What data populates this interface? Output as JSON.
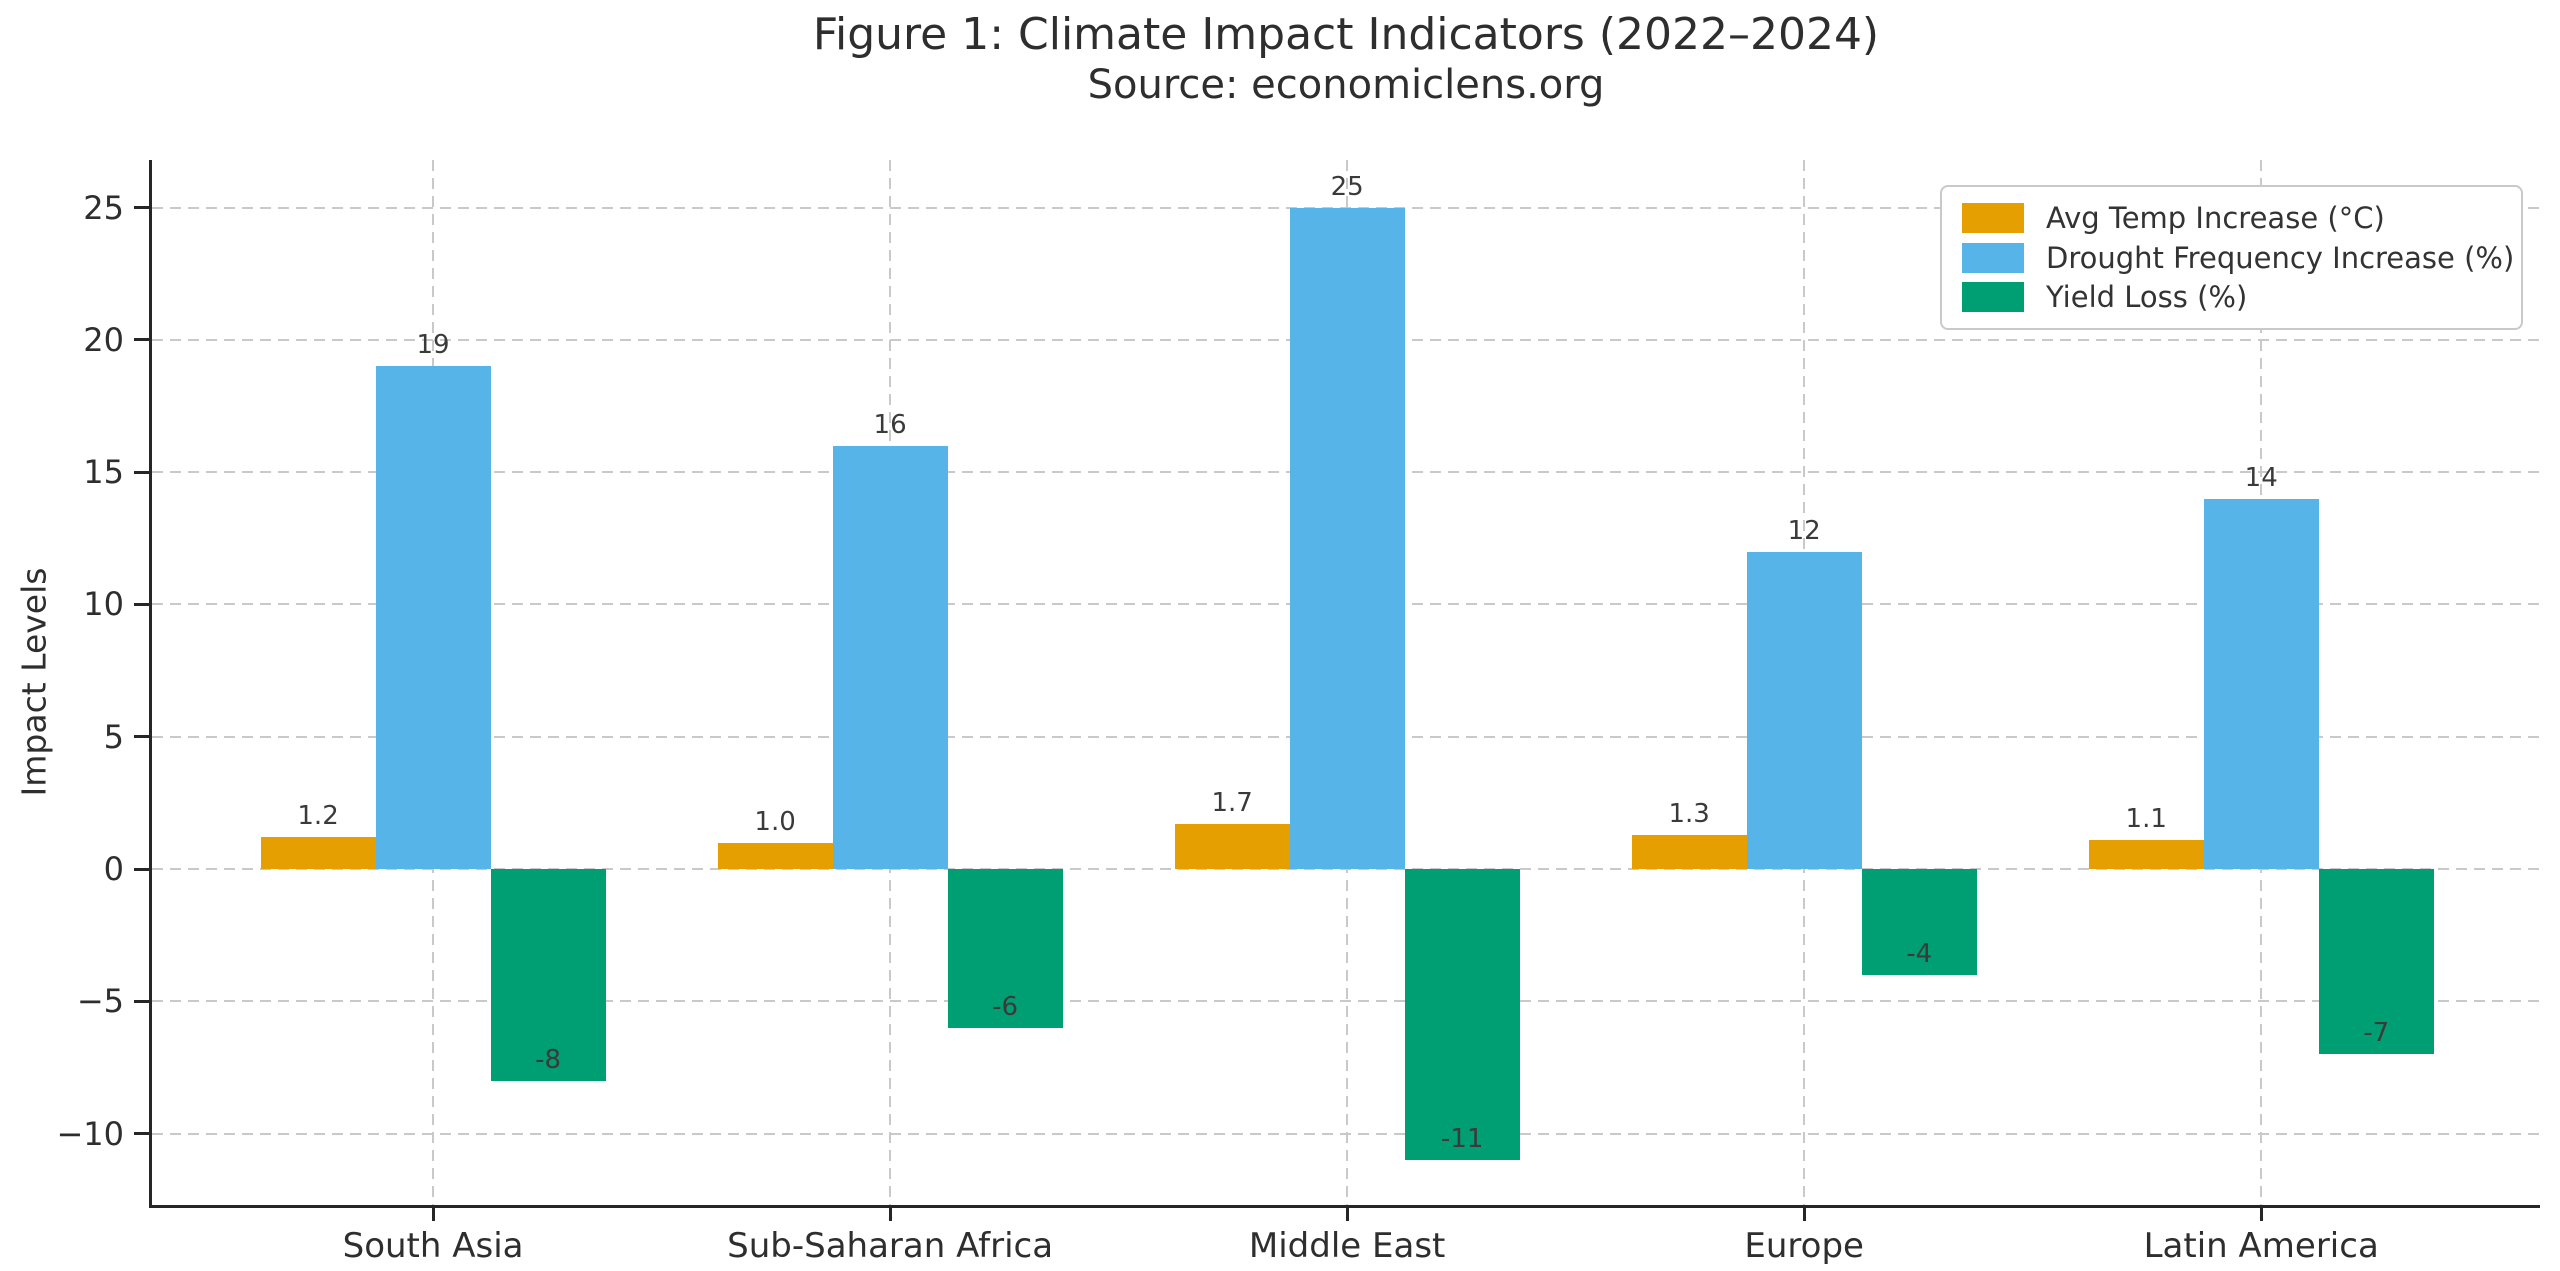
{
  "figure": {
    "title": "Figure 1: Climate Impact Indicators (2022–2024)",
    "subtitle": "Source: economiclens.org"
  },
  "chart_data": {
    "type": "bar",
    "title": "Figure 1: Climate Impact Indicators (2022–2024)",
    "subtitle": "Source: economiclens.org",
    "ylabel": "Impact Levels",
    "xlabel": "",
    "categories": [
      "South Asia",
      "Sub-Saharan Africa",
      "Middle East",
      "Europe",
      "Latin America"
    ],
    "series": [
      {
        "name": "Avg Temp Increase (°C)",
        "color": "#E69F00",
        "values": [
          1.2,
          1.0,
          1.7,
          1.3,
          1.1
        ],
        "labels": [
          "1.2",
          "1.0",
          "1.7",
          "1.3",
          "1.1"
        ]
      },
      {
        "name": "Drought Frequency Increase (%)",
        "color": "#56B4E9",
        "values": [
          19,
          16,
          25,
          12,
          14
        ],
        "labels": [
          "19",
          "16",
          "25",
          "12",
          "14"
        ]
      },
      {
        "name": "Yield Loss (%)",
        "color": "#009E73",
        "values": [
          -8,
          -6,
          -11,
          -4,
          -7
        ],
        "labels": [
          "-8",
          "-6",
          "-11",
          "-4",
          "-7"
        ]
      }
    ],
    "y_ticks": [
      25,
      20,
      15,
      10,
      5,
      0,
      -5,
      -10
    ],
    "y_tick_labels": [
      "25",
      "20",
      "15",
      "10",
      "5",
      "0",
      "−5",
      "−10"
    ],
    "ylim": [
      -12.7,
      26.8
    ],
    "grid": "dashed, horizontal at y ticks and vertical at category centers",
    "legend_position": "upper right",
    "colors": {
      "text": "#2e2e2e",
      "spine": "#262626",
      "grid": "#c9c9c9",
      "background": "#ffffff"
    }
  }
}
